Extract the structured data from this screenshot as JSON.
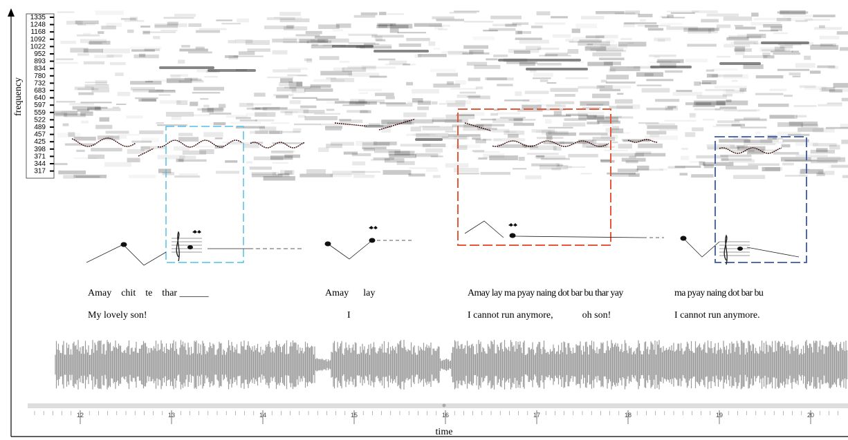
{
  "axes": {
    "y_label": "frequency",
    "x_label": "time",
    "frequency_ticks": [
      1335,
      1248,
      1168,
      1092,
      1022,
      952,
      893,
      834,
      780,
      732,
      683,
      640,
      597,
      559,
      522,
      489,
      457,
      425,
      398,
      371,
      344,
      317
    ],
    "time_ticks": [
      12,
      13,
      14,
      15,
      16,
      17,
      18,
      19,
      20
    ]
  },
  "lyrics": [
    {
      "original": "Amay    chit    te    thar ______",
      "translation": "My lovely son!"
    },
    {
      "original": "Amay      lay",
      "translation": "I"
    },
    {
      "original": "Amay lay ma pyay naing dot bar bu thar yay",
      "translation": "I cannot run anymore,            oh son!"
    },
    {
      "original": "ma pyay naing dot bar bu",
      "translation": "I cannot run anymore."
    }
  ]
}
